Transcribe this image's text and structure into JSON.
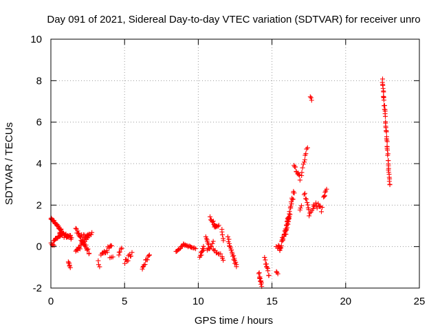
{
  "chart_data": {
    "type": "scatter",
    "title": "Day 091 of 2021, Sidereal Day-to-day VTEC variation (SDTVAR) for receiver unro",
    "xlabel": "GPS time / hours",
    "ylabel": "SDTVAR / TECUs",
    "xlim": [
      0,
      25
    ],
    "ylim": [
      -2,
      10
    ],
    "xticks": [
      0,
      5,
      10,
      15,
      20,
      25
    ],
    "yticks": [
      -2,
      0,
      2,
      4,
      6,
      8,
      10
    ],
    "grid": true,
    "marker": "plus",
    "colors": {
      "series": "#ff0000",
      "grid": "#9a9a9a",
      "frame": "#000000"
    },
    "series": [
      {
        "name": "SDTVAR",
        "segments": [
          {
            "x0": 0.0,
            "x1": 0.1,
            "y0": 1.35,
            "y1": 1.25,
            "n": 5,
            "jitter": 0.05
          },
          {
            "x0": 0.0,
            "x1": 0.2,
            "y0": 0.2,
            "y1": 0.0,
            "n": 5,
            "jitter": 0.08
          },
          {
            "x0": 0.1,
            "x1": 0.8,
            "y0": 1.3,
            "y1": 0.7,
            "n": 22,
            "jitter": 0.06
          },
          {
            "x0": 0.2,
            "x1": 0.8,
            "y0": 0.3,
            "y1": 0.6,
            "n": 18,
            "jitter": 0.06
          },
          {
            "x0": 0.6,
            "x1": 1.4,
            "y0": 0.6,
            "y1": 0.45,
            "n": 30,
            "jitter": 0.1
          },
          {
            "x0": 1.2,
            "x1": 1.3,
            "y0": -0.7,
            "y1": -1.0,
            "n": 6,
            "jitter": 0.05
          },
          {
            "x0": 1.7,
            "x1": 2.6,
            "y0": 0.8,
            "y1": -0.3,
            "n": 24,
            "jitter": 0.1
          },
          {
            "x0": 1.7,
            "x1": 2.6,
            "y0": -0.3,
            "y1": 0.6,
            "n": 24,
            "jitter": 0.1
          },
          {
            "x0": 2.0,
            "x1": 2.8,
            "y0": 0.5,
            "y1": 0.6,
            "n": 12,
            "jitter": 0.08
          },
          {
            "x0": 3.2,
            "x1": 3.3,
            "y0": -0.7,
            "y1": -1.0,
            "n": 3,
            "jitter": 0.03
          },
          {
            "x0": 3.4,
            "x1": 4.1,
            "y0": -0.4,
            "y1": 0.0,
            "n": 14,
            "jitter": 0.12
          },
          {
            "x0": 4.0,
            "x1": 4.2,
            "y0": -0.5,
            "y1": -0.5,
            "n": 3,
            "jitter": 0.05
          },
          {
            "x0": 4.6,
            "x1": 4.8,
            "y0": -0.4,
            "y1": 0.0,
            "n": 5,
            "jitter": 0.08
          },
          {
            "x0": 5.0,
            "x1": 5.5,
            "y0": -0.8,
            "y1": -0.3,
            "n": 10,
            "jitter": 0.12
          },
          {
            "x0": 6.2,
            "x1": 6.7,
            "y0": -1.0,
            "y1": -0.4,
            "n": 12,
            "jitter": 0.1
          },
          {
            "x0": 8.5,
            "x1": 9.0,
            "y0": -0.25,
            "y1": 0.1,
            "n": 10,
            "jitter": 0.03
          },
          {
            "x0": 9.0,
            "x1": 9.8,
            "y0": 0.1,
            "y1": -0.1,
            "n": 14,
            "jitter": 0.03
          },
          {
            "x0": 10.1,
            "x1": 10.4,
            "y0": -0.5,
            "y1": 0.0,
            "n": 10,
            "jitter": 0.1
          },
          {
            "x0": 10.5,
            "x1": 10.7,
            "y0": 0.5,
            "y1": 0.1,
            "n": 6,
            "jitter": 0.06
          },
          {
            "x0": 10.6,
            "x1": 11.0,
            "y0": -0.2,
            "y1": 0.2,
            "n": 8,
            "jitter": 0.08
          },
          {
            "x0": 10.8,
            "x1": 11.2,
            "y0": 1.4,
            "y1": 1.0,
            "n": 12,
            "jitter": 0.08
          },
          {
            "x0": 11.1,
            "x1": 11.4,
            "y0": 0.9,
            "y1": 1.0,
            "n": 6,
            "jitter": 0.05
          },
          {
            "x0": 11.0,
            "x1": 11.5,
            "y0": -0.1,
            "y1": -0.4,
            "n": 8,
            "jitter": 0.08
          },
          {
            "x0": 11.6,
            "x1": 11.7,
            "y0": 0.8,
            "y1": 0.3,
            "n": 5,
            "jitter": 0.05
          },
          {
            "x0": 11.6,
            "x1": 11.7,
            "y0": -0.5,
            "y1": -0.7,
            "n": 3,
            "jitter": 0.05
          },
          {
            "x0": 12.0,
            "x1": 12.6,
            "y0": 0.4,
            "y1": -1.0,
            "n": 20,
            "jitter": 0.1
          },
          {
            "x0": 14.1,
            "x1": 14.3,
            "y0": -1.3,
            "y1": -1.9,
            "n": 12,
            "jitter": 0.1
          },
          {
            "x0": 14.5,
            "x1": 14.8,
            "y0": -0.6,
            "y1": -1.4,
            "n": 10,
            "jitter": 0.1
          },
          {
            "x0": 15.3,
            "x1": 15.4,
            "y0": -1.2,
            "y1": -1.3,
            "n": 3,
            "jitter": 0.05
          },
          {
            "x0": 15.3,
            "x1": 15.5,
            "y0": 0.0,
            "y1": 0.0,
            "n": 4,
            "jitter": 0.08
          },
          {
            "x0": 15.5,
            "x1": 16.2,
            "y0": -0.2,
            "y1": 1.6,
            "n": 30,
            "jitter": 0.15
          },
          {
            "x0": 15.9,
            "x1": 16.5,
            "y0": 0.5,
            "y1": 2.7,
            "n": 24,
            "jitter": 0.15
          },
          {
            "x0": 16.5,
            "x1": 16.9,
            "y0": 3.9,
            "y1": 3.3,
            "n": 10,
            "jitter": 0.1
          },
          {
            "x0": 16.9,
            "x1": 17.0,
            "y0": 1.8,
            "y1": 2.0,
            "n": 3,
            "jitter": 0.05
          },
          {
            "x0": 17.0,
            "x1": 17.4,
            "y0": 3.5,
            "y1": 4.8,
            "n": 10,
            "jitter": 0.08
          },
          {
            "x0": 17.2,
            "x1": 17.5,
            "y0": 2.6,
            "y1": 1.8,
            "n": 8,
            "jitter": 0.1
          },
          {
            "x0": 17.6,
            "x1": 17.7,
            "y0": 7.25,
            "y1": 7.05,
            "n": 3,
            "jitter": 0.03
          },
          {
            "x0": 17.5,
            "x1": 17.8,
            "y0": 1.5,
            "y1": 1.8,
            "n": 5,
            "jitter": 0.08
          },
          {
            "x0": 17.8,
            "x1": 18.4,
            "y0": 2.1,
            "y1": 1.8,
            "n": 12,
            "jitter": 0.15
          },
          {
            "x0": 18.5,
            "x1": 18.7,
            "y0": 2.4,
            "y1": 2.7,
            "n": 6,
            "jitter": 0.08
          },
          {
            "x0": 22.5,
            "x1": 23.0,
            "y0": 8.1,
            "y1": 2.9,
            "n": 48,
            "jitter": 0.1
          }
        ]
      }
    ]
  }
}
